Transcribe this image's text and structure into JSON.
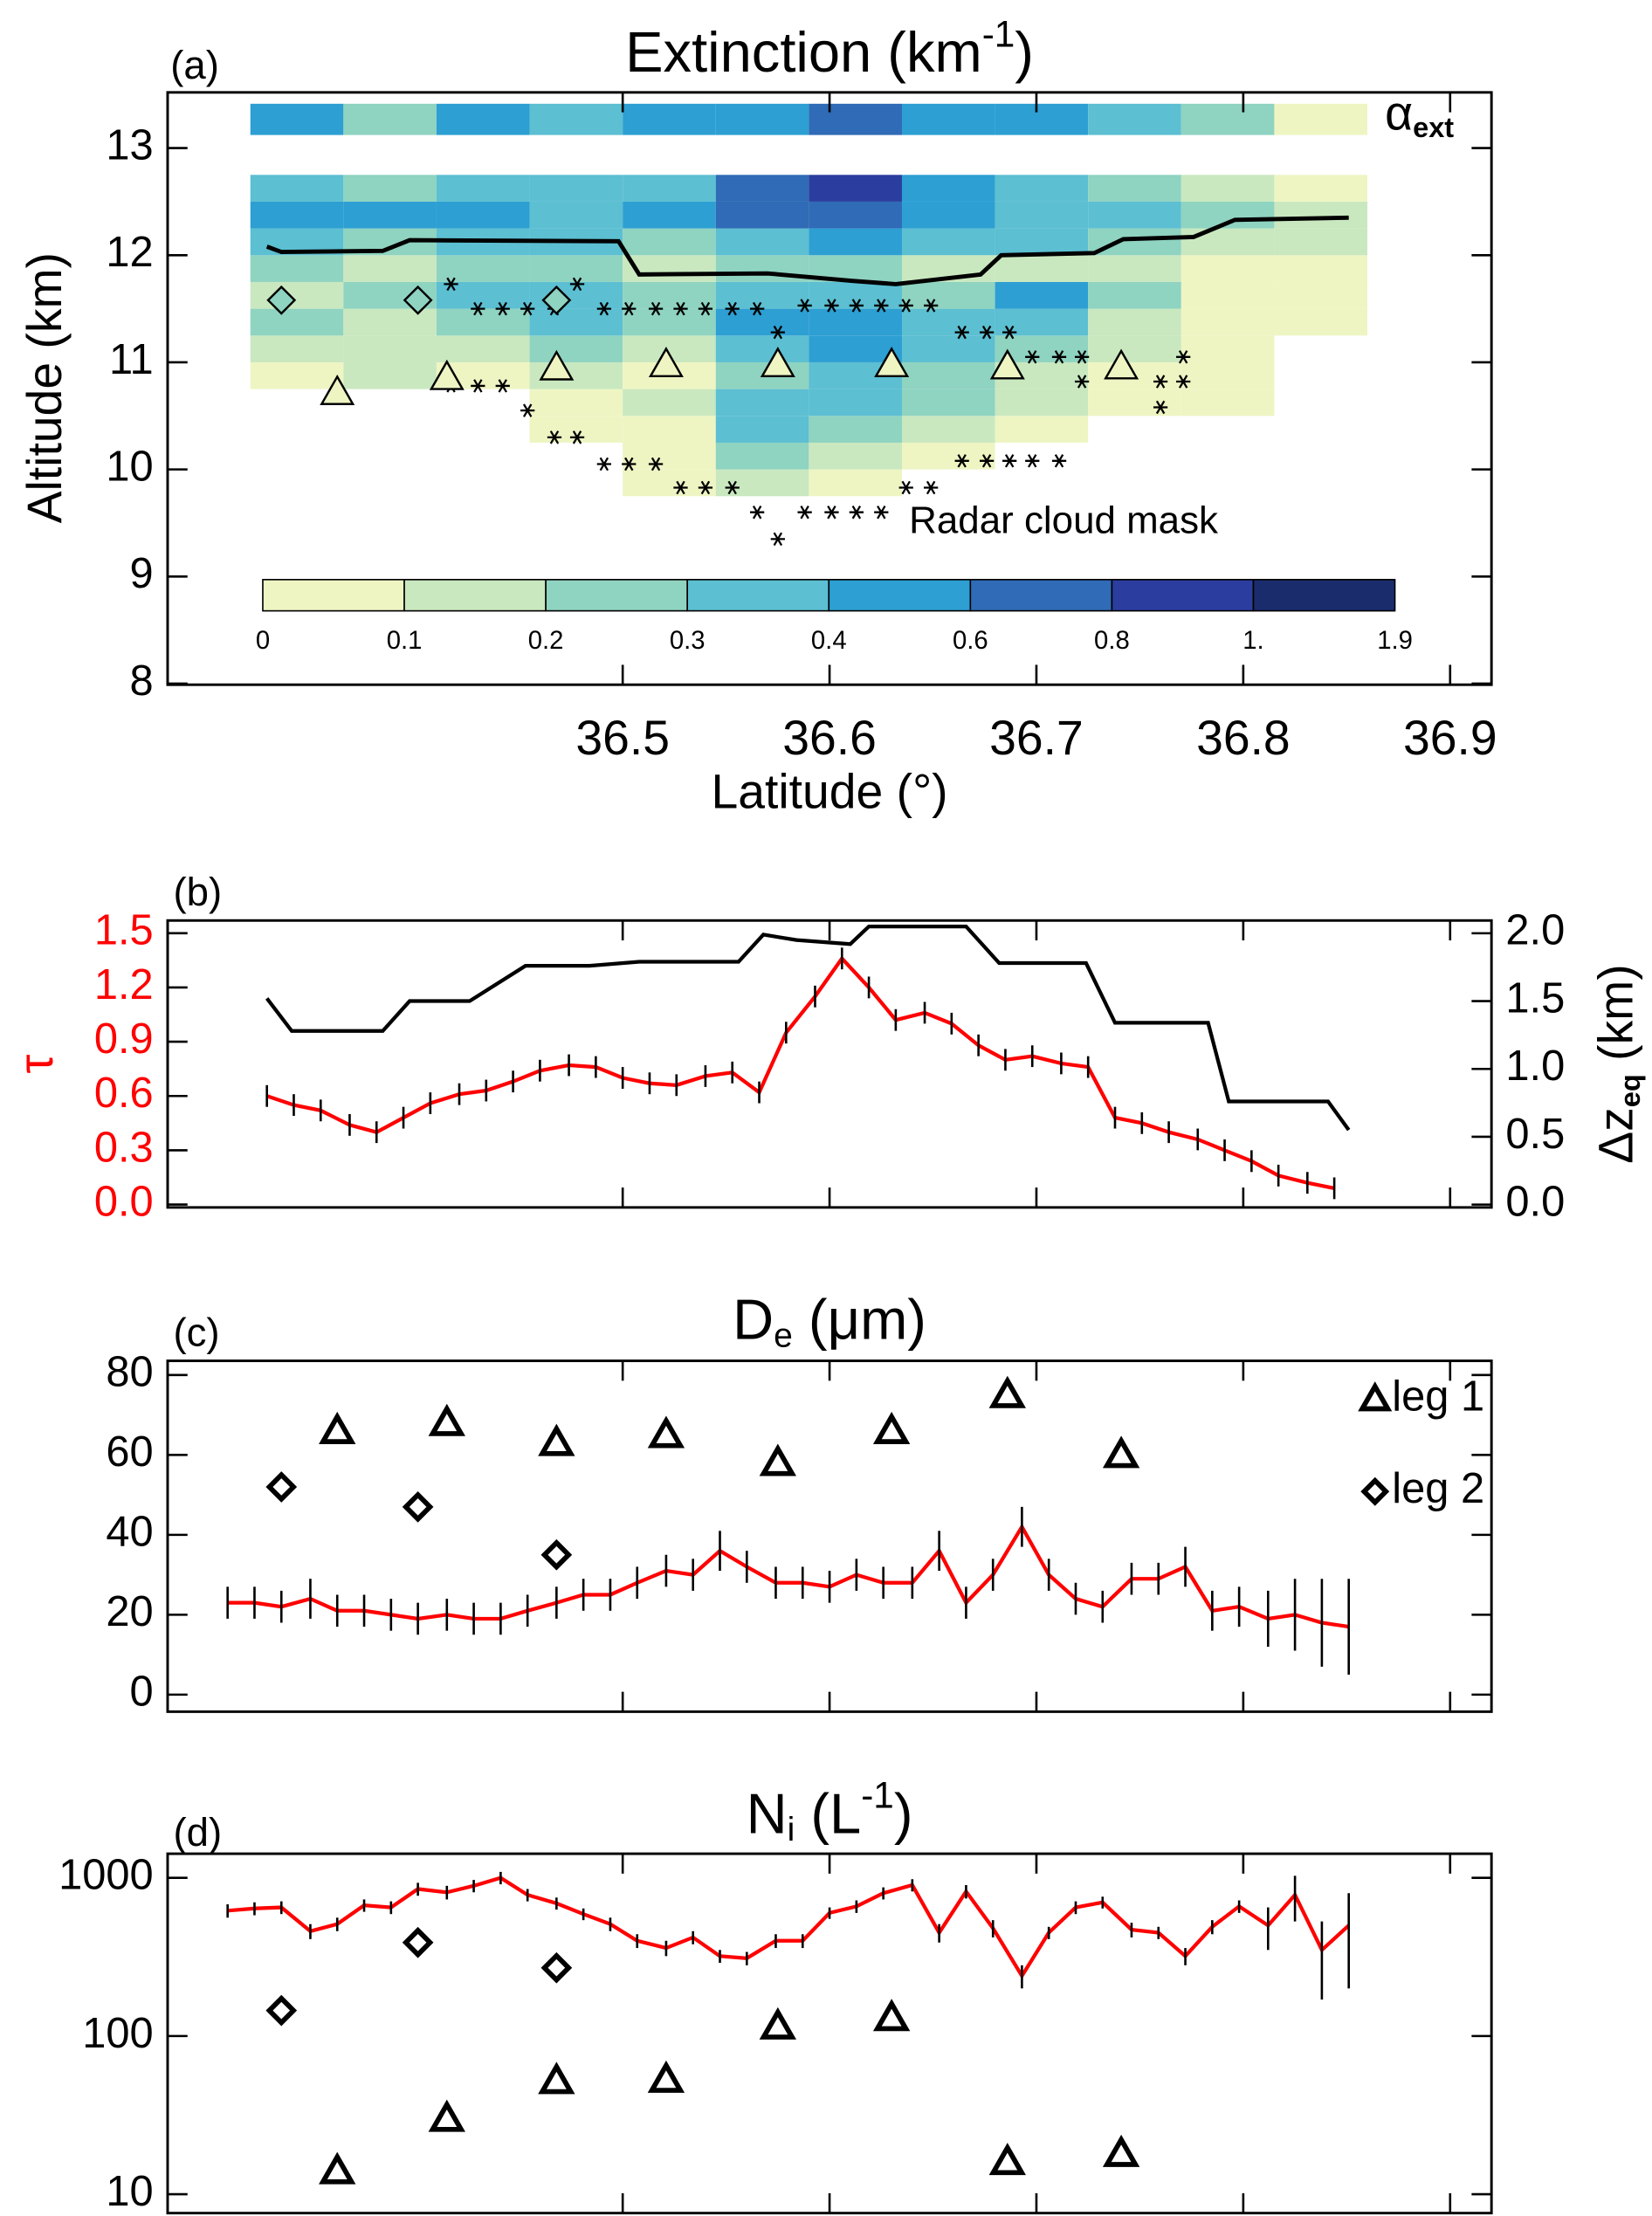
{
  "chart_data": [
    {
      "type": "heatmap",
      "panel_label": "(a)",
      "title": [
        "Extinction (km",
        "-1",
        ")"
      ],
      "xlabel": "Latitude (°)",
      "ylabel": "Altitude (km)",
      "xlim": [
        36.28,
        36.92
      ],
      "xticks": [
        36.5,
        36.6,
        36.7,
        36.8,
        36.9
      ],
      "ylim": [
        7.99,
        13.52
      ],
      "yticks": [
        8,
        9,
        10,
        11,
        12,
        13
      ],
      "heatmap": {
        "x_edges": [
          36.32,
          36.365,
          36.41,
          36.455,
          36.5,
          36.545,
          36.59,
          36.635,
          36.68,
          36.725,
          36.77,
          36.815,
          36.86
        ],
        "y_edges": [
          9.75,
          10.0,
          10.25,
          10.5,
          10.75,
          11.0,
          11.25,
          11.5,
          11.75,
          12.0,
          12.25,
          12.5,
          12.75
        ],
        "z": [
          [
            null,
            null,
            null,
            null,
            0.05,
            0.15,
            0.05,
            null,
            null,
            null,
            null,
            null
          ],
          [
            null,
            null,
            null,
            null,
            0.05,
            0.25,
            0.15,
            0.05,
            null,
            null,
            null,
            null
          ],
          [
            null,
            null,
            null,
            0.05,
            0.05,
            0.35,
            0.25,
            0.15,
            0.05,
            null,
            null,
            null
          ],
          [
            null,
            null,
            null,
            0.05,
            0.15,
            0.35,
            0.35,
            0.25,
            0.15,
            0.05,
            0.05,
            null
          ],
          [
            0.05,
            0.15,
            0.05,
            0.15,
            0.05,
            0.25,
            0.35,
            0.25,
            0.15,
            0.05,
            0.05,
            null
          ],
          [
            0.15,
            0.15,
            0.15,
            0.25,
            0.15,
            0.35,
            0.5,
            0.35,
            0.25,
            0.15,
            0.05,
            null
          ],
          [
            0.25,
            0.15,
            0.25,
            0.35,
            0.25,
            0.5,
            0.5,
            0.35,
            0.35,
            0.15,
            0.05,
            0.05
          ],
          [
            0.15,
            0.25,
            0.35,
            0.35,
            0.25,
            0.35,
            0.35,
            0.25,
            0.5,
            0.25,
            0.05,
            0.05
          ],
          [
            0.25,
            0.15,
            0.25,
            0.25,
            0.15,
            0.25,
            0.25,
            0.15,
            0.15,
            0.15,
            0.05,
            0.05
          ],
          [
            0.35,
            0.25,
            0.35,
            0.35,
            0.25,
            0.35,
            0.5,
            0.35,
            0.35,
            0.25,
            0.15,
            0.15
          ],
          [
            0.5,
            0.5,
            0.5,
            0.35,
            0.5,
            0.7,
            0.7,
            0.5,
            0.35,
            0.35,
            0.25,
            0.15
          ],
          [
            0.35,
            0.25,
            0.35,
            0.35,
            0.35,
            0.7,
            0.9,
            0.5,
            0.35,
            0.25,
            0.15,
            0.05
          ]
        ]
      },
      "strip": {
        "label": [
          "α",
          "ext"
        ],
        "values": [
          0.5,
          0.25,
          0.5,
          0.35,
          0.5,
          0.5,
          0.7,
          0.5,
          0.5,
          0.35,
          0.25,
          0.05
        ]
      },
      "colorbar": {
        "bounds": [
          0,
          0.1,
          0.2,
          0.3,
          0.4,
          0.6,
          0.8,
          {
            "value": 1,
            "label": "1."
          },
          1.9
        ],
        "colors": [
          "#eef5c3",
          "#c9e8bf",
          "#8fd3c1",
          "#5cbfd2",
          "#2d9fd3",
          "#2f6bb6",
          "#2b3e9f",
          "#1a2c6c"
        ]
      },
      "cloud_top": {
        "color": "#000000",
        "x": [
          36.328,
          36.335,
          36.384,
          36.397,
          36.498,
          36.508,
          36.57,
          36.611,
          36.632,
          36.673,
          36.683,
          36.728,
          36.742,
          36.776,
          36.796,
          36.851
        ],
        "y": [
          12.08,
          12.03,
          12.04,
          12.14,
          12.13,
          11.82,
          11.83,
          11.76,
          11.73,
          11.82,
          12.0,
          12.02,
          12.15,
          12.17,
          12.33,
          12.35
        ]
      },
      "radar_mask": {
        "label": "Radar cloud mask",
        "x": [
          36.417,
          36.43,
          36.442,
          36.454,
          36.467,
          36.478,
          36.491,
          36.503,
          36.516,
          36.528,
          36.54,
          36.553,
          36.565,
          36.588,
          36.601,
          36.613,
          36.625,
          36.637,
          36.649,
          36.575,
          36.664,
          36.676,
          36.687,
          36.698,
          36.711,
          36.722,
          36.722,
          36.771,
          36.771,
          36.76,
          36.76,
          36.417,
          36.43,
          36.442,
          36.454,
          36.467,
          36.478,
          36.491,
          36.503,
          36.516,
          36.528,
          36.54,
          36.553,
          36.565,
          36.575,
          36.588,
          36.601,
          36.613,
          36.625,
          36.637,
          36.649,
          36.664,
          36.676,
          36.687,
          36.698,
          36.711
        ],
        "y": [
          11.73,
          11.5,
          11.5,
          11.5,
          11.5,
          11.73,
          11.5,
          11.5,
          11.5,
          11.5,
          11.5,
          11.5,
          11.5,
          11.53,
          11.53,
          11.53,
          11.53,
          11.53,
          11.53,
          11.28,
          11.28,
          11.28,
          11.28,
          11.05,
          11.05,
          11.05,
          10.82,
          11.05,
          10.82,
          10.82,
          10.58,
          10.78,
          10.78,
          10.78,
          10.55,
          10.3,
          10.3,
          10.05,
          10.05,
          10.05,
          9.83,
          9.83,
          9.83,
          9.6,
          9.35,
          9.6,
          9.6,
          9.6,
          9.6,
          9.83,
          9.83,
          10.08,
          10.08,
          10.08,
          10.08,
          10.08
        ]
      },
      "markers": [
        {
          "marker": "triangle",
          "fill": "#eef5c3",
          "x": [
            36.362,
            36.415,
            36.468,
            36.521,
            36.575,
            36.63,
            36.686,
            36.741
          ],
          "y": [
            10.72,
            10.86,
            10.95,
            10.98,
            10.98,
            10.98,
            10.96,
            10.96
          ]
        },
        {
          "marker": "diamond",
          "fill": "#8fd3c1",
          "x": [
            36.335,
            36.401,
            36.468
          ],
          "y": [
            11.58,
            11.58,
            11.58
          ]
        }
      ]
    },
    {
      "type": "line",
      "panel_label": "(b)",
      "ylabel": "τ",
      "ycolor": "#ff0000",
      "y2label": [
        "Δz",
        "eq",
        " (km)"
      ],
      "xlim": [
        36.28,
        36.92
      ],
      "xticks": [
        36.5,
        36.6,
        36.7,
        36.8,
        36.9
      ],
      "xticklabels": false,
      "ylim": [
        -0.016,
        1.57
      ],
      "yticks": [
        {
          "value": 0,
          "label": "0.0"
        },
        0.3,
        0.6,
        0.9,
        1.2,
        1.5
      ],
      "y2lim": [
        -0.021,
        2.094
      ],
      "y2ticks": [
        {
          "value": 0,
          "label": "0.0"
        },
        0.5,
        {
          "value": 1,
          "label": "1.0"
        },
        1.5,
        {
          "value": 2,
          "label": "2.0"
        }
      ],
      "series": [
        {
          "color": "#ff0000",
          "error": 0.06,
          "x": [
            36.328,
            36.341,
            36.354,
            36.368,
            36.381,
            36.394,
            36.407,
            36.421,
            36.434,
            36.447,
            36.46,
            36.474,
            36.487,
            36.5,
            36.513,
            36.526,
            36.54,
            36.553,
            36.566,
            36.579,
            36.593,
            36.606,
            36.619,
            36.632,
            36.646,
            36.659,
            36.672,
            36.685,
            36.698,
            36.712,
            36.725,
            36.738,
            36.751,
            36.764,
            36.778,
            36.791,
            36.804,
            36.817,
            36.831,
            36.844
          ],
          "values": [
            0.6,
            0.55,
            0.52,
            0.44,
            0.4,
            0.48,
            0.56,
            0.61,
            0.63,
            0.68,
            0.74,
            0.77,
            0.76,
            0.7,
            0.67,
            0.66,
            0.71,
            0.73,
            0.62,
            0.95,
            1.15,
            1.36,
            1.2,
            1.02,
            1.06,
            1.0,
            0.88,
            0.8,
            0.82,
            0.78,
            0.76,
            0.48,
            0.45,
            0.4,
            0.36,
            0.3,
            0.24,
            0.16,
            0.12,
            0.09
          ]
        },
        {
          "color": "#000000",
          "axis": "y2",
          "x": [
            36.328,
            36.34,
            36.384,
            36.397,
            36.426,
            36.453,
            36.484,
            36.508,
            36.556,
            36.568,
            36.584,
            36.61,
            36.619,
            36.666,
            36.682,
            36.724,
            36.738,
            36.783,
            36.793,
            36.841,
            36.851
          ],
          "values": [
            1.52,
            1.28,
            1.28,
            1.5,
            1.5,
            1.76,
            1.76,
            1.79,
            1.79,
            1.99,
            1.95,
            1.92,
            2.05,
            2.05,
            1.78,
            1.78,
            1.34,
            1.34,
            0.76,
            0.76,
            0.55
          ]
        }
      ]
    },
    {
      "type": "line",
      "panel_label": "(c)",
      "title": [
        "D",
        "e",
        " (μm)"
      ],
      "legend": "upper right",
      "xlim": [
        36.28,
        36.92
      ],
      "xticks": [
        36.5,
        36.6,
        36.7,
        36.8,
        36.9
      ],
      "xticklabels": false,
      "ylim": [
        -4.27,
        83.56
      ],
      "yticks": [
        0,
        20,
        40,
        60,
        80
      ],
      "series": [
        {
          "color": "#ff0000",
          "x": [
            36.309,
            36.322,
            36.335,
            36.349,
            36.362,
            36.375,
            36.388,
            36.401,
            36.415,
            36.428,
            36.441,
            36.454,
            36.468,
            36.481,
            36.494,
            36.507,
            36.521,
            36.534,
            36.547,
            36.56,
            36.574,
            36.587,
            36.6,
            36.613,
            36.626,
            36.64,
            36.653,
            36.666,
            36.679,
            36.693,
            36.706,
            36.719,
            36.732,
            36.746,
            36.759,
            36.772,
            36.785,
            36.798,
            36.812,
            36.825,
            36.838,
            36.851
          ],
          "values": [
            23,
            23,
            22,
            24,
            21,
            21,
            20,
            19,
            20,
            19,
            19,
            21,
            23,
            25,
            25,
            28,
            31,
            30,
            36,
            32,
            28,
            28,
            27,
            30,
            28,
            28,
            36,
            23,
            30,
            42,
            30,
            24,
            22,
            29,
            29,
            32,
            21,
            22,
            19,
            20,
            18,
            17
          ],
          "errors": [
            4,
            4,
            4,
            5,
            4,
            4,
            4,
            4,
            4,
            4,
            4,
            4,
            4,
            4,
            4,
            4,
            4,
            4,
            5,
            4,
            4,
            4,
            4,
            4,
            4,
            4,
            5,
            4,
            4,
            5,
            4,
            4,
            4,
            4,
            4,
            5,
            5,
            5,
            7,
            9,
            11,
            12
          ]
        },
        {
          "name": "leg 1",
          "marker": "triangle",
          "color": "#000000",
          "x": [
            36.362,
            36.415,
            36.468,
            36.521,
            36.575,
            36.63,
            36.686,
            36.741
          ],
          "values": [
            66,
            68,
            63,
            65,
            58,
            66,
            75,
            60
          ]
        },
        {
          "name": "leg 2",
          "marker": "diamond",
          "color": "#000000",
          "x": [
            36.335,
            36.401,
            36.468
          ],
          "values": [
            52,
            47,
            35
          ]
        }
      ]
    },
    {
      "type": "line",
      "panel_label": "(d)",
      "title": [
        "N",
        "i",
        " (L",
        "-1",
        ")"
      ],
      "log": true,
      "xlim": [
        36.28,
        36.92
      ],
      "xticks": [
        36.5,
        36.6,
        36.7,
        36.8,
        36.9
      ],
      "xticklabels": false,
      "ylim": [
        7.6,
        1420
      ],
      "yticks": [
        10,
        100,
        1000
      ],
      "series": [
        {
          "color": "#ff0000",
          "x": [
            36.309,
            36.322,
            36.335,
            36.349,
            36.362,
            36.375,
            36.388,
            36.401,
            36.415,
            36.428,
            36.441,
            36.454,
            36.468,
            36.481,
            36.494,
            36.507,
            36.521,
            36.534,
            36.547,
            36.56,
            36.574,
            36.587,
            36.6,
            36.613,
            36.626,
            36.64,
            36.653,
            36.666,
            36.679,
            36.693,
            36.706,
            36.719,
            36.732,
            36.746,
            36.759,
            36.772,
            36.785,
            36.798,
            36.812,
            36.825,
            36.838,
            36.851
          ],
          "values": [
            620,
            640,
            650,
            460,
            510,
            670,
            650,
            850,
            810,
            890,
            1000,
            780,
            690,
            590,
            510,
            400,
            360,
            420,
            320,
            310,
            400,
            400,
            600,
            660,
            800,
            900,
            450,
            820,
            480,
            240,
            450,
            650,
            700,
            470,
            450,
            320,
            490,
            660,
            500,
            780,
            350,
            500
          ],
          "errors": [
            60,
            60,
            60,
            50,
            50,
            60,
            60,
            80,
            80,
            80,
            90,
            70,
            60,
            50,
            50,
            40,
            40,
            40,
            30,
            30,
            40,
            40,
            50,
            60,
            70,
            80,
            60,
            80,
            60,
            40,
            40,
            60,
            60,
            50,
            40,
            40,
            50,
            60,
            150,
            250,
            180,
            300
          ]
        },
        {
          "marker": "triangle",
          "color": "#000000",
          "x": [
            36.362,
            36.415,
            36.468,
            36.521,
            36.575,
            36.63,
            36.686,
            36.741
          ],
          "values": [
            14,
            30,
            52,
            53,
            115,
            130,
            16,
            18
          ]
        },
        {
          "marker": "diamond",
          "color": "#000000",
          "x": [
            36.335,
            36.401,
            36.468
          ],
          "values": [
            145,
            390,
            270
          ]
        }
      ]
    }
  ]
}
